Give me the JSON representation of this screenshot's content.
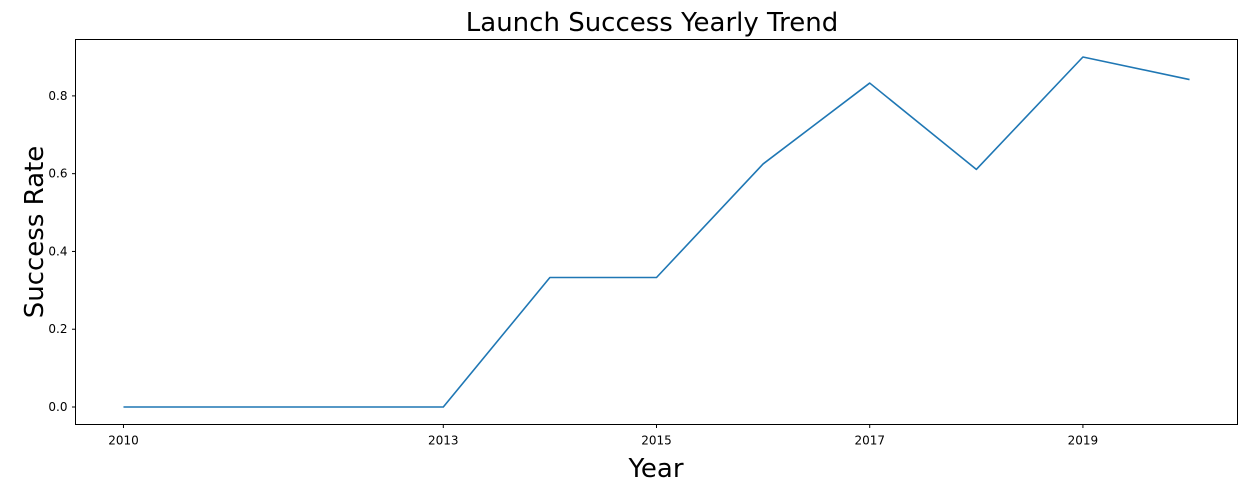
{
  "chart_data": {
    "type": "line",
    "title": "Launch Success Yearly Trend",
    "xlabel": "Year",
    "ylabel": "Success Rate",
    "x": [
      2010,
      2012,
      2013,
      2014,
      2015,
      2016,
      2017,
      2018,
      2019,
      2020
    ],
    "xlim": [
      2009.55,
      2020.45
    ],
    "xticks": [
      2010,
      2013,
      2015,
      2017,
      2019
    ],
    "xtick_labels": [
      "2010",
      "2013",
      "2015",
      "2017",
      "2019"
    ],
    "ylim": [
      -0.045,
      0.945
    ],
    "yticks": [
      0.0,
      0.2,
      0.4,
      0.6,
      0.8
    ],
    "ytick_labels": [
      "0.0",
      "0.2",
      "0.4",
      "0.6",
      "0.8"
    ],
    "grid": false,
    "series": [
      {
        "values": [
          0.0,
          0.0,
          0.0,
          0.333,
          0.333,
          0.625,
          0.833,
          0.611,
          0.9,
          0.842
        ],
        "color": "#1f77b4"
      }
    ]
  }
}
